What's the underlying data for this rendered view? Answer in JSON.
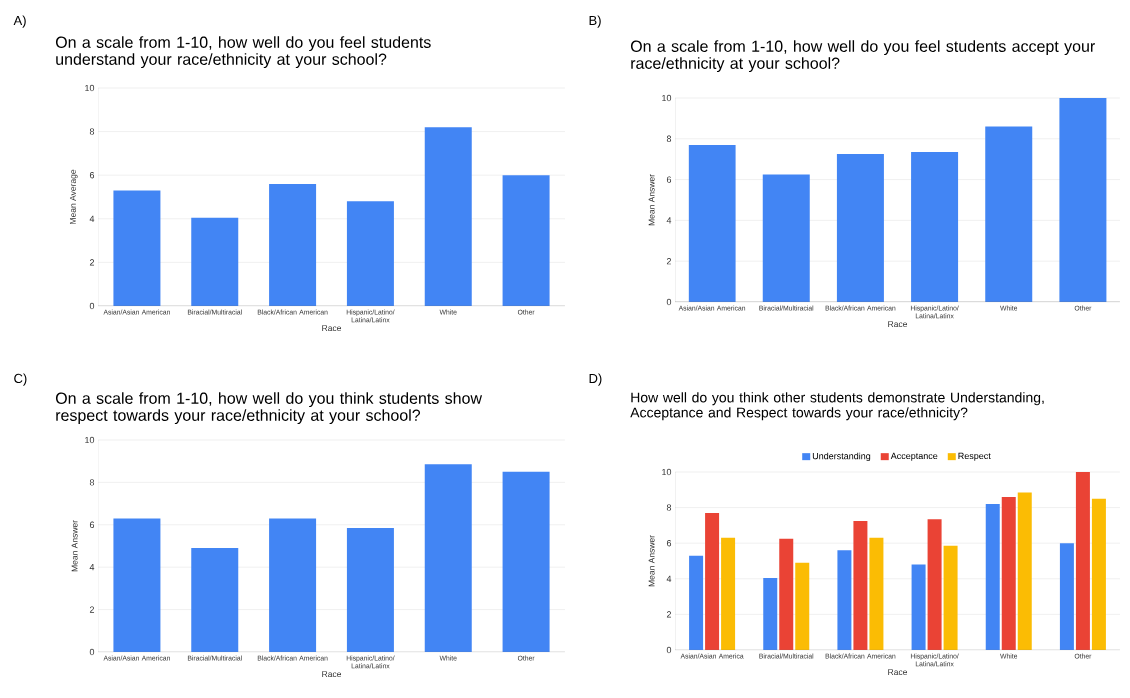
{
  "chart_data": [
    {
      "type": "bar",
      "annotations": [
        "A)"
      ],
      "title": "On a scale from 1-10, how well do you feel students understand your race/ethnicity at your school?",
      "xlabel": "Race",
      "ylabel": "Mean Average",
      "categories": [
        "Asian/Asian American",
        "Biracial/Multiracial",
        "Black/African American",
        "Hispanic/Latino/ Latina/Latinx",
        "White",
        "Other"
      ],
      "values": [
        5.3,
        4.05,
        5.6,
        4.8,
        8.2,
        6.0
      ],
      "color": "#4285f4",
      "ylim": [
        0,
        10
      ],
      "yticks": [
        0,
        2,
        4,
        6,
        8,
        10
      ],
      "grid": "y"
    },
    {
      "type": "bar",
      "annotations": [
        "B)"
      ],
      "title": "On a scale from 1-10, how well do you feel students accept your race/ethnicity at your school?",
      "xlabel": "Race",
      "ylabel": "Mean Answer",
      "categories": [
        "Asian/Asian American",
        "Biracial/Multiracial",
        "Black/African American",
        "Hispanic/Latino/ Latina/Latinx",
        "White",
        "Other"
      ],
      "values": [
        7.7,
        6.25,
        7.25,
        7.35,
        8.6,
        10.0
      ],
      "color": "#4285f4",
      "ylim": [
        0,
        10
      ],
      "yticks": [
        0,
        2,
        4,
        6,
        8,
        10
      ],
      "grid": "y"
    },
    {
      "type": "bar",
      "annotations": [
        "C)"
      ],
      "title": "On a scale from 1-10, how well do you think students show respect towards your race/ethnicity at your school?",
      "xlabel": "Race",
      "ylabel": "Mean Answer",
      "categories": [
        "Asian/Asian American",
        "Biracial/Multiracial",
        "Black/African American",
        "Hispanic/Latino/ Latina/Latinx",
        "White",
        "Other"
      ],
      "values": [
        6.3,
        4.9,
        6.3,
        5.85,
        8.85,
        8.5
      ],
      "color": "#4285f4",
      "ylim": [
        0,
        10
      ],
      "yticks": [
        0,
        2,
        4,
        6,
        8,
        10
      ],
      "grid": "y"
    },
    {
      "type": "bar",
      "annotations": [
        "D)"
      ],
      "title": "How well do you think other students demonstrate Understanding, Acceptance and Respect towards your race/ethnicity?",
      "xlabel": "Race",
      "ylabel": "Mean Answer",
      "categories": [
        "Asian/Asian America",
        "Biracial/Multiracial",
        "Black/African American",
        "Hispanic/Latino/ Latina/Latinx",
        "White",
        "Other"
      ],
      "series": [
        {
          "name": "Understanding",
          "color": "#4285f4",
          "values": [
            5.3,
            4.05,
            5.6,
            4.8,
            8.2,
            6.0
          ]
        },
        {
          "name": "Acceptance",
          "color": "#ea4335",
          "values": [
            7.7,
            6.25,
            7.25,
            7.35,
            8.6,
            10.0
          ]
        },
        {
          "name": "Respect",
          "color": "#fbbc04",
          "values": [
            6.3,
            4.9,
            6.3,
            5.85,
            8.85,
            8.5
          ]
        }
      ],
      "ylim": [
        0,
        10
      ],
      "yticks": [
        0,
        2,
        4,
        6,
        8,
        10
      ],
      "grid": "y",
      "legend": "top"
    }
  ]
}
